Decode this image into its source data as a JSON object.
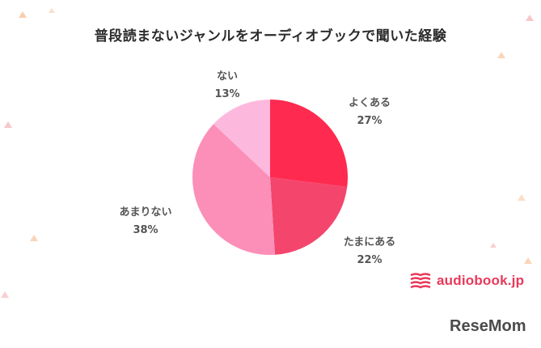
{
  "chart_data": {
    "type": "pie",
    "title": "普段読まないジャンルをオーディオブックで聞いた経験",
    "slices": [
      {
        "label": "よくある",
        "value": 27,
        "value_text": "27%",
        "color": "#ff2a4f"
      },
      {
        "label": "たまにある",
        "value": 22,
        "value_text": "22%",
        "color": "#f4456d"
      },
      {
        "label": "あまりない",
        "value": 38,
        "value_text": "38%",
        "color": "#fb8fb7"
      },
      {
        "label": "ない",
        "value": 13,
        "value_text": "13%",
        "color": "#fdb9dd"
      }
    ]
  },
  "brand": {
    "name": "audiobook.jp",
    "color": "#e8395a"
  },
  "watermark": {
    "text": "ReseMom"
  }
}
